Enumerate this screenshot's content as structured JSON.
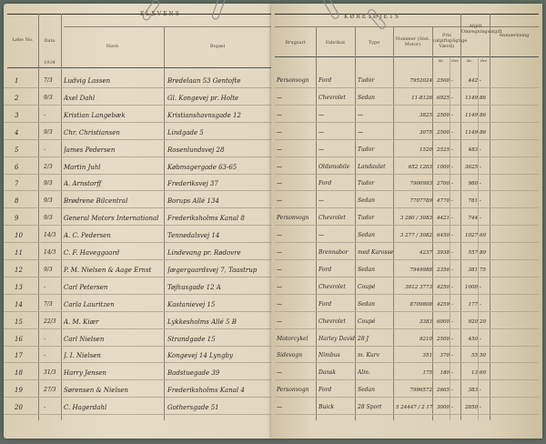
{
  "left_page": {
    "section_title": "ELEVENS",
    "headers": {
      "no": "Løbe No.",
      "date": "Dato",
      "year": "1934",
      "name": "Navn",
      "address": "Bopæl"
    },
    "rows": [
      {
        "no": "1",
        "date": "7/3",
        "name": "Ludvig Lassen",
        "address": "Bredelaan 53 Gentofte"
      },
      {
        "no": "2",
        "date": "9/3",
        "name": "Axel Dahl",
        "address": "Gl. Kongevej pr. Holte"
      },
      {
        "no": "3",
        "date": "-",
        "name": "Kristian Langebæk",
        "address": "Kristianshavnsgade 12"
      },
      {
        "no": "4",
        "date": "9/3",
        "name": "Chr. Christiansen",
        "address": "Lindgade 5"
      },
      {
        "no": "5",
        "date": "-",
        "name": "James Pedersen",
        "address": "Rosenlundsvej 28"
      },
      {
        "no": "6",
        "date": "2/3",
        "name": "Martin Juhl",
        "address": "Købmagergade 63-65"
      },
      {
        "no": "7",
        "date": "9/3",
        "name": "A. Arnstorff",
        "address": "Frederiksvej 37"
      },
      {
        "no": "8",
        "date": "9/3",
        "name": "Brødrene Bilcentral",
        "address": "Borups Allé 134"
      },
      {
        "no": "9",
        "date": "9/3",
        "name": "General Motors International",
        "address": "Frederiksholms Kanal 8"
      },
      {
        "no": "10",
        "date": "14/3",
        "name": "A. C. Pedersen",
        "address": "Tennedalsvej 14"
      },
      {
        "no": "11",
        "date": "14/3",
        "name": "C. F. Haveggaard",
        "address": "Lindevang pr. Rødovre"
      },
      {
        "no": "12",
        "date": "9/3",
        "name": "P. M. Nielsen & Aage Ernst",
        "address": "Jægergaardsvej 7, Taastrup"
      },
      {
        "no": "13",
        "date": "-",
        "name": "Carl Petersen",
        "address": "Tøjhusgade 12 A"
      },
      {
        "no": "14",
        "date": "7/3",
        "name": "Carla Lauritzen",
        "address": "Kastanievej 15"
      },
      {
        "no": "15",
        "date": "22/3",
        "name": "A. M. Kiær",
        "address": "Lykkesholms Allé 5 B"
      },
      {
        "no": "16",
        "date": "-",
        "name": "Carl Nielsen",
        "address": "Strandgade 15"
      },
      {
        "no": "17",
        "date": "-",
        "name": "J. I. Nielsen",
        "address": "Kongevej 14 Lyngby"
      },
      {
        "no": "18",
        "date": "31/3",
        "name": "Harry Jensen",
        "address": "Badstuegade 39"
      },
      {
        "no": "19",
        "date": "27/3",
        "name": "Sørensen & Nielsen",
        "address": "Frederiksholms Kanal 4"
      },
      {
        "no": "20",
        "date": "-",
        "name": "C. Hagerdahl",
        "address": "Gothersgade 51"
      }
    ]
  },
  "right_page": {
    "section_title": "KØRETØJETS",
    "headers": {
      "use": "Brugsart",
      "make": "Fabrikat",
      "type": "Type",
      "number": "Nummer (Stel. Motor)",
      "price": "Pris (afgiftspligtige Værdi)",
      "tax": "Afgift Omregningsafgift",
      "remarks": "Anmærkning",
      "kr": "Kr.",
      "ore": "Øre"
    },
    "rows": [
      {
        "use": "Personvogn",
        "make": "Ford",
        "type": "Tudor",
        "number": "7952024",
        "price": "2500",
        "price_ore": "-",
        "tax": "442",
        "tax_ore": "-"
      },
      {
        "use": "—",
        "make": "Chevrolet",
        "type": "Sedan",
        "number": "11-8126",
        "price": "6925",
        "price_ore": "-",
        "tax": "1149",
        "tax_ore": "86"
      },
      {
        "use": "—",
        "make": "—",
        "type": "—",
        "number": "3825",
        "price": "2500",
        "price_ore": "-",
        "tax": "1149",
        "tax_ore": "86"
      },
      {
        "use": "—",
        "make": "—",
        "type": "—",
        "number": "3075",
        "price": "2500",
        "price_ore": "-",
        "tax": "1149",
        "tax_ore": "86"
      },
      {
        "use": "—",
        "make": "—",
        "type": "Tudor",
        "number": "1520",
        "price": "2525",
        "price_ore": "-",
        "tax": "483",
        "tax_ore": "-"
      },
      {
        "use": "—",
        "make": "Oldsmobile",
        "type": "Landaulet",
        "number": "652 1203",
        "price": "1000",
        "price_ore": "-",
        "tax": "3625",
        "tax_ore": "-"
      },
      {
        "use": "—",
        "make": "Ford",
        "type": "Tudor",
        "number": "7900993",
        "price": "2700",
        "price_ore": "-",
        "tax": "980",
        "tax_ore": "-"
      },
      {
        "use": "—",
        "make": "—",
        "type": "Sedan",
        "number": "7707789",
        "price": "4770",
        "price_ore": "-",
        "tax": "781",
        "tax_ore": "-"
      },
      {
        "use": "Personvogn",
        "make": "Chevrolet",
        "type": "Tudor",
        "number": "3 280 / 3083",
        "price": "4421",
        "price_ore": "-",
        "tax": "744",
        "tax_ore": "-"
      },
      {
        "use": "—",
        "make": "—",
        "type": "Sedan",
        "number": "3 277 / 3082",
        "price": "6450",
        "price_ore": "-",
        "tax": "1027",
        "tax_ore": "60"
      },
      {
        "use": "—",
        "make": "Brennabor",
        "type": "med Karosseri",
        "number": "4237",
        "price": "3938",
        "price_ore": "-",
        "tax": "557",
        "tax_ore": "80"
      },
      {
        "use": "—",
        "make": "Ford",
        "type": "Sedan",
        "number": "7949988",
        "price": "2356",
        "price_ore": "-",
        "tax": "381",
        "tax_ore": "75"
      },
      {
        "use": "—",
        "make": "Chevrolet",
        "type": "Coupé",
        "number": "3012 3773",
        "price": "4250",
        "price_ore": "-",
        "tax": "1000",
        "tax_ore": "-"
      },
      {
        "use": "—",
        "make": "Ford",
        "type": "Sedan",
        "number": "8709808",
        "price": "4259",
        "price_ore": "-",
        "tax": "177",
        "tax_ore": "-"
      },
      {
        "use": "—",
        "make": "Chevrolet",
        "type": "Coupé",
        "number": "3383",
        "price": "6000",
        "price_ore": "-",
        "tax": "920",
        "tax_ore": "20"
      },
      {
        "use": "Motorcykel",
        "make": "Harley Davidson",
        "type": "28 J",
        "number": "9210",
        "price": "2500",
        "price_ore": "-",
        "tax": "450",
        "tax_ore": "-"
      },
      {
        "use": "Sidevogn",
        "make": "Nimbus",
        "type": "m. Kurv",
        "number": "351",
        "price": "370",
        "price_ore": "-",
        "tax": "55",
        "tax_ore": "50"
      },
      {
        "use": "—",
        "make": "Dansk",
        "type": "Alm.",
        "number": "175",
        "price": "180",
        "price_ore": "-",
        "tax": "13",
        "tax_ore": "60"
      },
      {
        "use": "Personvogn",
        "make": "Ford",
        "type": "Sedan",
        "number": "7996572",
        "price": "2665",
        "price_ore": "-",
        "tax": "383",
        "tax_ore": "-"
      },
      {
        "use": "—",
        "make": "Buick",
        "type": "28 Sport",
        "number": "5 24447 / 2 17733",
        "price": "3000",
        "price_ore": "-",
        "tax": "2850",
        "tax_ore": "-"
      }
    ]
  }
}
